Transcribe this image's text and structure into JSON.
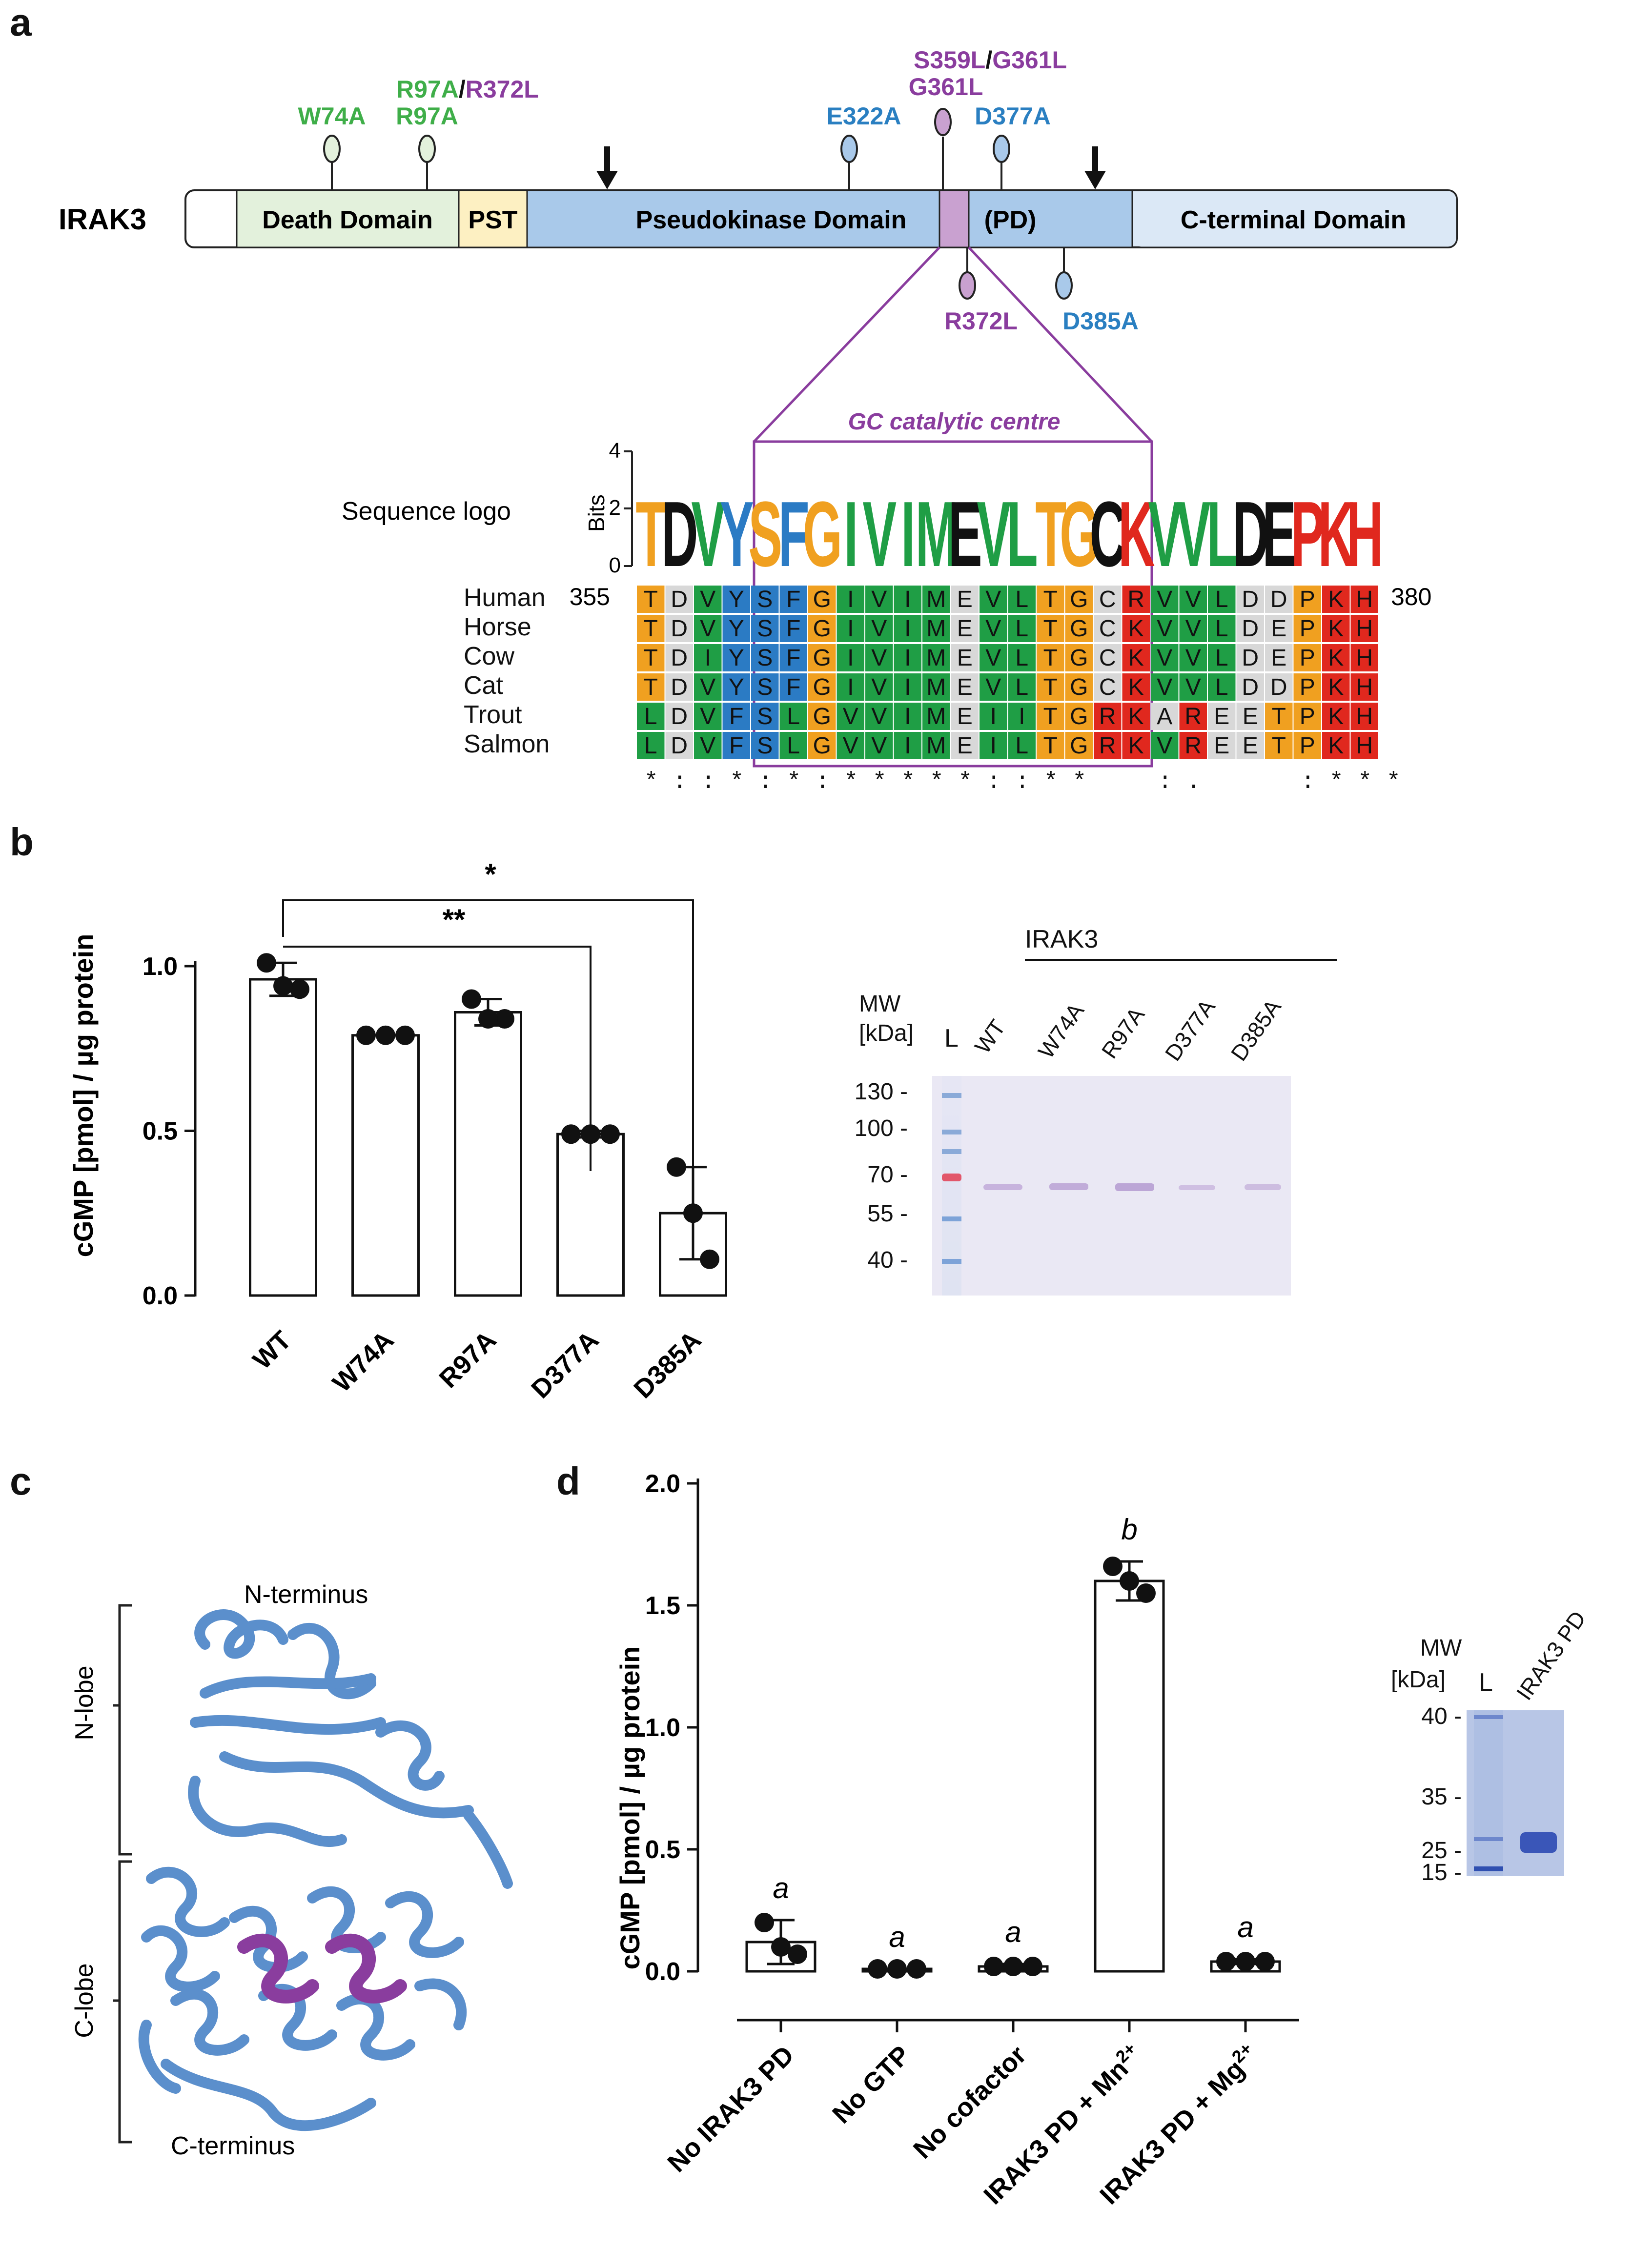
{
  "colors": {
    "green_mut": "#3fae49",
    "purple_mut": "#8a3d9e",
    "blue_mut": "#2a7fc1",
    "death_fill": "#e3f1dc",
    "pst_fill": "#fdf0c2",
    "pk_fill": "#a9c9ea",
    "gc_fill": "#c9a1d0",
    "cterm_fill": "#dbe8f6",
    "aln_orange": "#f0a020",
    "aln_green": "#1f9e45",
    "aln_blue": "#2b7bc4",
    "aln_red": "#e0281e",
    "aln_gray": "#d8d8d8",
    "frame_purple": "#8a3d9e"
  },
  "panel_a": {
    "letter": "a",
    "protein": "IRAK3",
    "domains": {
      "death": "Death Domain",
      "pst": "PST",
      "pk": "Pseudokinase Domain",
      "pd": "(PD)",
      "cterm": "C-terminal Domain"
    },
    "mutations_top": {
      "w74a": "W74A",
      "r97a_1": "R97A",
      "slash1": "/",
      "r372l_1": "R372L",
      "r97a_2": "R97A",
      "e322a": "E322A",
      "s359l": "S359L",
      "slash2": "/",
      "g361l_1": "G361L",
      "g361l_2": "G361L",
      "d377a": "D377A"
    },
    "mutations_bottom": {
      "r372l": "R372L",
      "d385a": "D385A"
    },
    "gc_label": "GC catalytic centre",
    "logo_title": "Sequence logo",
    "bits_label": "Bits",
    "bits_ticks": [
      "4",
      "2",
      "0"
    ],
    "start_pos": "355",
    "end_pos": "380",
    "alignment": [
      {
        "species": "Human",
        "seq": "TDVYSFGIVIMEVLTGCRVVLDDPKH"
      },
      {
        "species": "Horse",
        "seq": "TDVYSFGIVIMEVLTGCKVVLDEPKH"
      },
      {
        "species": "Cow",
        "seq": "TDIYSFGIVIMEVLTGCKVVLDEPKH"
      },
      {
        "species": "Cat",
        "seq": "TDVYSFGIVIMEVLTGCKVVLDDPKH"
      },
      {
        "species": "Trout",
        "seq": "LDVFSLGVVIMEIITGRKAREETPKH"
      },
      {
        "species": "Salmon",
        "seq": "LDVFSLGVVIMEILTGRKVREETPKH"
      }
    ],
    "conservation": "*::*:*:*****::**  :.   :***",
    "logo_letters": "TDVYSFGIVIMEVLTGCKVVLDEPKH"
  },
  "panel_b": {
    "letter": "b",
    "ylabel": "cGMP [pmol] / µg protein",
    "yticks": [
      "0.0",
      "0.5",
      "1.0"
    ],
    "sig_far": "*",
    "sig_near": "**",
    "gel": {
      "group": "IRAK3",
      "mw_title": "MW",
      "mw_unit": "[kDa]",
      "ladder": "L",
      "lanes": [
        "WT",
        "W74A",
        "R97A",
        "D377A",
        "D385A"
      ],
      "mw_marks": [
        "130",
        "100",
        "70",
        "55",
        "40"
      ]
    }
  },
  "panel_c": {
    "letter": "c",
    "n_terminus": "N-terminus",
    "c_terminus": "C-terminus",
    "n_lobe": "N-lobe",
    "c_lobe": "C-lobe"
  },
  "panel_d": {
    "letter": "d",
    "ylabel": "cGMP [pmol] / µg protein",
    "yticks": [
      "0.0",
      "0.5",
      "1.0",
      "1.5",
      "2.0"
    ],
    "letters": [
      "a",
      "a",
      "a",
      "b",
      "a"
    ],
    "xlabels": [
      {
        "main": "No IRAK3 PD",
        "sup": ""
      },
      {
        "main": "No GTP",
        "sup": ""
      },
      {
        "main": "No cofactor",
        "sup": ""
      },
      {
        "main": "IRAK3 PD + Mn",
        "sup": "2+"
      },
      {
        "main": "IRAK3 PD + Mg",
        "sup": "2+"
      }
    ],
    "gel": {
      "mw_title": "MW",
      "mw_unit": "[kDa]",
      "ladder": "L",
      "lane": "IRAK3 PD",
      "mw_marks": [
        "40",
        "35",
        "25",
        "15"
      ]
    }
  },
  "chart_data": [
    {
      "type": "bar",
      "panel": "b",
      "categories": [
        "WT",
        "W74A",
        "R97A",
        "D377A",
        "D385A"
      ],
      "values": [
        0.96,
        0.79,
        0.86,
        0.49,
        0.25
      ],
      "errors": [
        0.05,
        0.0,
        0.04,
        0.01,
        0.14
      ],
      "points": [
        [
          1.01,
          0.93,
          0.94
        ],
        [
          0.79,
          0.79,
          0.79
        ],
        [
          0.9,
          0.84,
          0.84
        ],
        [
          0.49,
          0.49,
          0.49
        ],
        [
          0.39,
          0.11,
          0.25
        ]
      ],
      "ylabel": "cGMP [pmol] / µg protein",
      "ylim": [
        0,
        1.05
      ]
    },
    {
      "type": "bar",
      "panel": "d",
      "categories": [
        "No IRAK3 PD",
        "No GTP",
        "No cofactor",
        "IRAK3 PD + Mn2+",
        "IRAK3 PD + Mg2+"
      ],
      "values": [
        0.12,
        0.01,
        0.02,
        1.6,
        0.04
      ],
      "errors": [
        0.09,
        0.0,
        0.01,
        0.08,
        0.01
      ],
      "points": [
        [
          0.2,
          0.07,
          0.1
        ],
        [
          0.01,
          0.01,
          0.01
        ],
        [
          0.02,
          0.02,
          0.02
        ],
        [
          1.66,
          1.55,
          1.6
        ],
        [
          0.04,
          0.04,
          0.04
        ]
      ],
      "letters": [
        "a",
        "a",
        "a",
        "b",
        "a"
      ],
      "ylabel": "cGMP [pmol] / µg protein",
      "ylim": [
        0,
        2.0
      ]
    }
  ]
}
